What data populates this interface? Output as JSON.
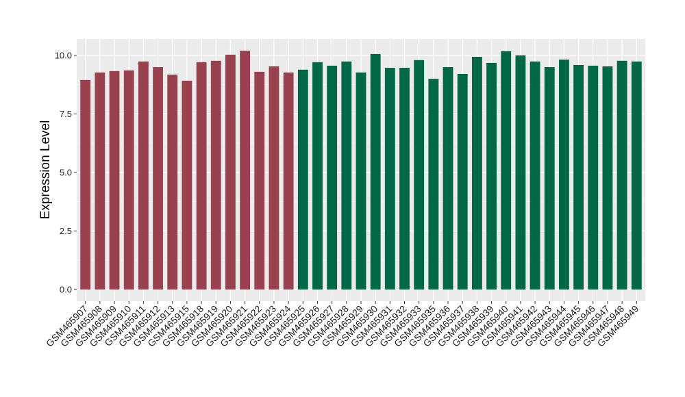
{
  "chart_data": {
    "type": "bar",
    "y_label": "Expression Level",
    "categories": [
      "GSM465907",
      "GSM465908",
      "GSM465909",
      "GSM465910",
      "GSM465911",
      "GSM465912",
      "GSM465913",
      "GSM465915",
      "GSM465918",
      "GSM465919",
      "GSM465920",
      "GSM465921",
      "GSM465922",
      "GSM465923",
      "GSM465924",
      "GSM465925",
      "GSM465926",
      "GSM465927",
      "GSM465928",
      "GSM465929",
      "GSM465930",
      "GSM465931",
      "GSM465932",
      "GSM465933",
      "GSM465935",
      "GSM465936",
      "GSM465937",
      "GSM465938",
      "GSM465939",
      "GSM465940",
      "GSM465941",
      "GSM465942",
      "GSM465943",
      "GSM465944",
      "GSM465945",
      "GSM465946",
      "GSM465947",
      "GSM465948",
      "GSM465949"
    ],
    "values": [
      8.95,
      9.27,
      9.33,
      9.36,
      9.74,
      9.5,
      9.18,
      8.92,
      9.71,
      9.77,
      10.03,
      10.2,
      9.3,
      9.53,
      9.27,
      9.39,
      9.71,
      9.56,
      9.74,
      9.27,
      10.06,
      9.47,
      9.47,
      9.8,
      9.0,
      9.5,
      9.21,
      9.94,
      9.68,
      10.18,
      10.0,
      9.74,
      9.5,
      9.82,
      9.59,
      9.56,
      9.53,
      9.77,
      9.74
    ],
    "colors": [
      "#9a4150",
      "#9a4150",
      "#9a4150",
      "#9a4150",
      "#9a4150",
      "#9a4150",
      "#9a4150",
      "#9a4150",
      "#9a4150",
      "#9a4150",
      "#9a4150",
      "#9a4150",
      "#9a4150",
      "#9a4150",
      "#9a4150",
      "#006846",
      "#006846",
      "#006846",
      "#006846",
      "#006846",
      "#006846",
      "#006846",
      "#006846",
      "#006846",
      "#006846",
      "#006846",
      "#006846",
      "#006846",
      "#006846",
      "#006846",
      "#006846",
      "#006846",
      "#006846",
      "#006846",
      "#006846",
      "#006846",
      "#006846",
      "#006846",
      "#006846"
    ],
    "ylim": [
      -0.5,
      10.7
    ],
    "yticks": [
      {
        "value": 0,
        "label": "0.0"
      },
      2.5,
      {
        "value": 5,
        "label": "5.0"
      },
      7.5,
      {
        "value": 10,
        "label": "10.0"
      }
    ],
    "grid": true
  }
}
